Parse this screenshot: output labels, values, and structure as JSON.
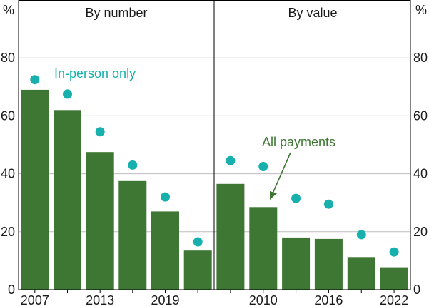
{
  "chart_data": {
    "type": "bar",
    "y_unit_left": "%",
    "y_unit_right": "%",
    "ylim": [
      0,
      100
    ],
    "yticks": [
      0,
      20,
      40,
      60,
      80
    ],
    "grid": true,
    "colors": {
      "bars": "#3e7733",
      "points": "#17b0ad",
      "grid": "#bdbdbd",
      "axis": "#000000"
    },
    "panels": [
      {
        "title": "By number",
        "x": [
          2007,
          2010,
          2013,
          2016,
          2019,
          2022
        ],
        "xtick_labels": [
          "2007",
          "2013",
          "2019"
        ],
        "series": [
          {
            "name": "All payments",
            "type": "bar",
            "values": [
              69,
              62,
              47.5,
              37.5,
              27,
              13.5
            ]
          },
          {
            "name": "In-person only",
            "type": "scatter",
            "values": [
              72.5,
              67.5,
              54.5,
              43,
              32,
              16.5
            ]
          }
        ]
      },
      {
        "title": "By value",
        "x": [
          2007,
          2010,
          2013,
          2016,
          2019,
          2022
        ],
        "xtick_labels": [
          "2010",
          "2016",
          "2022"
        ],
        "series": [
          {
            "name": "All payments",
            "type": "bar",
            "values": [
              36.5,
              28.5,
              18,
              17.5,
              11,
              7.5
            ]
          },
          {
            "name": "In-person only",
            "type": "scatter",
            "values": [
              44.5,
              42.5,
              31.5,
              29.5,
              19,
              13
            ]
          }
        ]
      }
    ],
    "annotations": {
      "in_person": "In-person only",
      "all_payments": "All payments"
    }
  }
}
